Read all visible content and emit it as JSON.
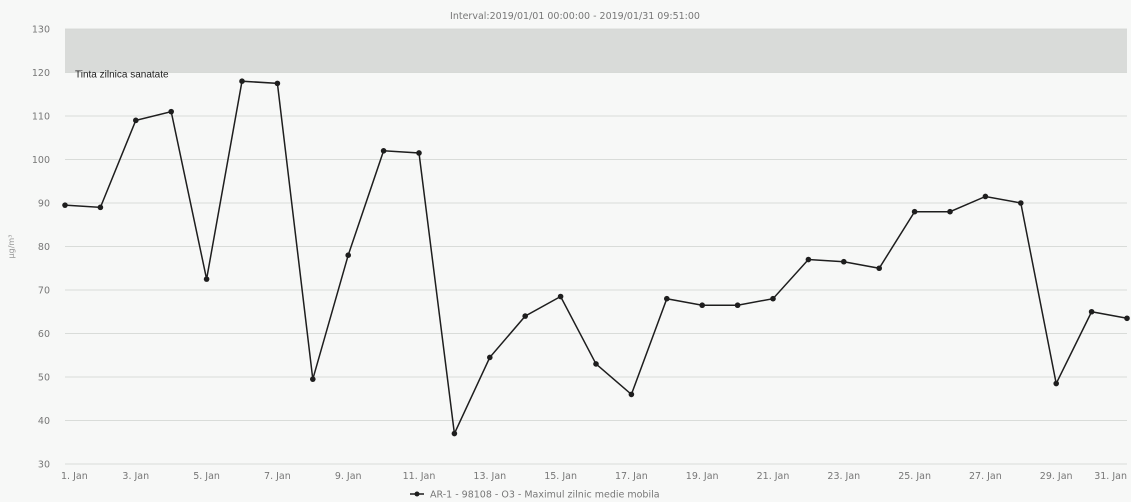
{
  "chart_data": {
    "type": "line",
    "subtitle": "Interval:2019/01/01 00:00:00 - 2019/01/31 09:51:00",
    "ylabel": "µg/m³",
    "ylim": [
      30,
      130
    ],
    "yticks": [
      30,
      40,
      50,
      60,
      70,
      80,
      90,
      100,
      110,
      120,
      130
    ],
    "grid": true,
    "x_tick_labels": [
      "1. Jan",
      "3. Jan",
      "5. Jan",
      "7. Jan",
      "9. Jan",
      "11. Jan",
      "13. Jan",
      "15. Jan",
      "17. Jan",
      "19. Jan",
      "21. Jan",
      "23. Jan",
      "25. Jan",
      "27. Jan",
      "29. Jan",
      "31. Jan"
    ],
    "plot_band": {
      "from": 120,
      "to": 130,
      "label": "Tinta zilnica sanatate"
    },
    "legend_placement": "bottom-center",
    "series": [
      {
        "name": "AR-1 - 98108 - O3 - Maximul zilnic medie mobila",
        "color": "#1e1e1e",
        "x": [
          "2019-01-01",
          "2019-01-02",
          "2019-01-03",
          "2019-01-04",
          "2019-01-05",
          "2019-01-06",
          "2019-01-07",
          "2019-01-08",
          "2019-01-09",
          "2019-01-10",
          "2019-01-11",
          "2019-01-12",
          "2019-01-13",
          "2019-01-14",
          "2019-01-15",
          "2019-01-16",
          "2019-01-17",
          "2019-01-18",
          "2019-01-19",
          "2019-01-20",
          "2019-01-21",
          "2019-01-22",
          "2019-01-23",
          "2019-01-24",
          "2019-01-25",
          "2019-01-26",
          "2019-01-27",
          "2019-01-28",
          "2019-01-29",
          "2019-01-30",
          "2019-01-31"
        ],
        "values": [
          89.5,
          89,
          109,
          111,
          72.5,
          118,
          117.5,
          49.5,
          78,
          102,
          101.5,
          37,
          54.5,
          64,
          68.5,
          53,
          46,
          68,
          66.5,
          66.5,
          68,
          77,
          76.5,
          75,
          88,
          88,
          91.5,
          90,
          48.5,
          65,
          63.5
        ]
      }
    ]
  }
}
